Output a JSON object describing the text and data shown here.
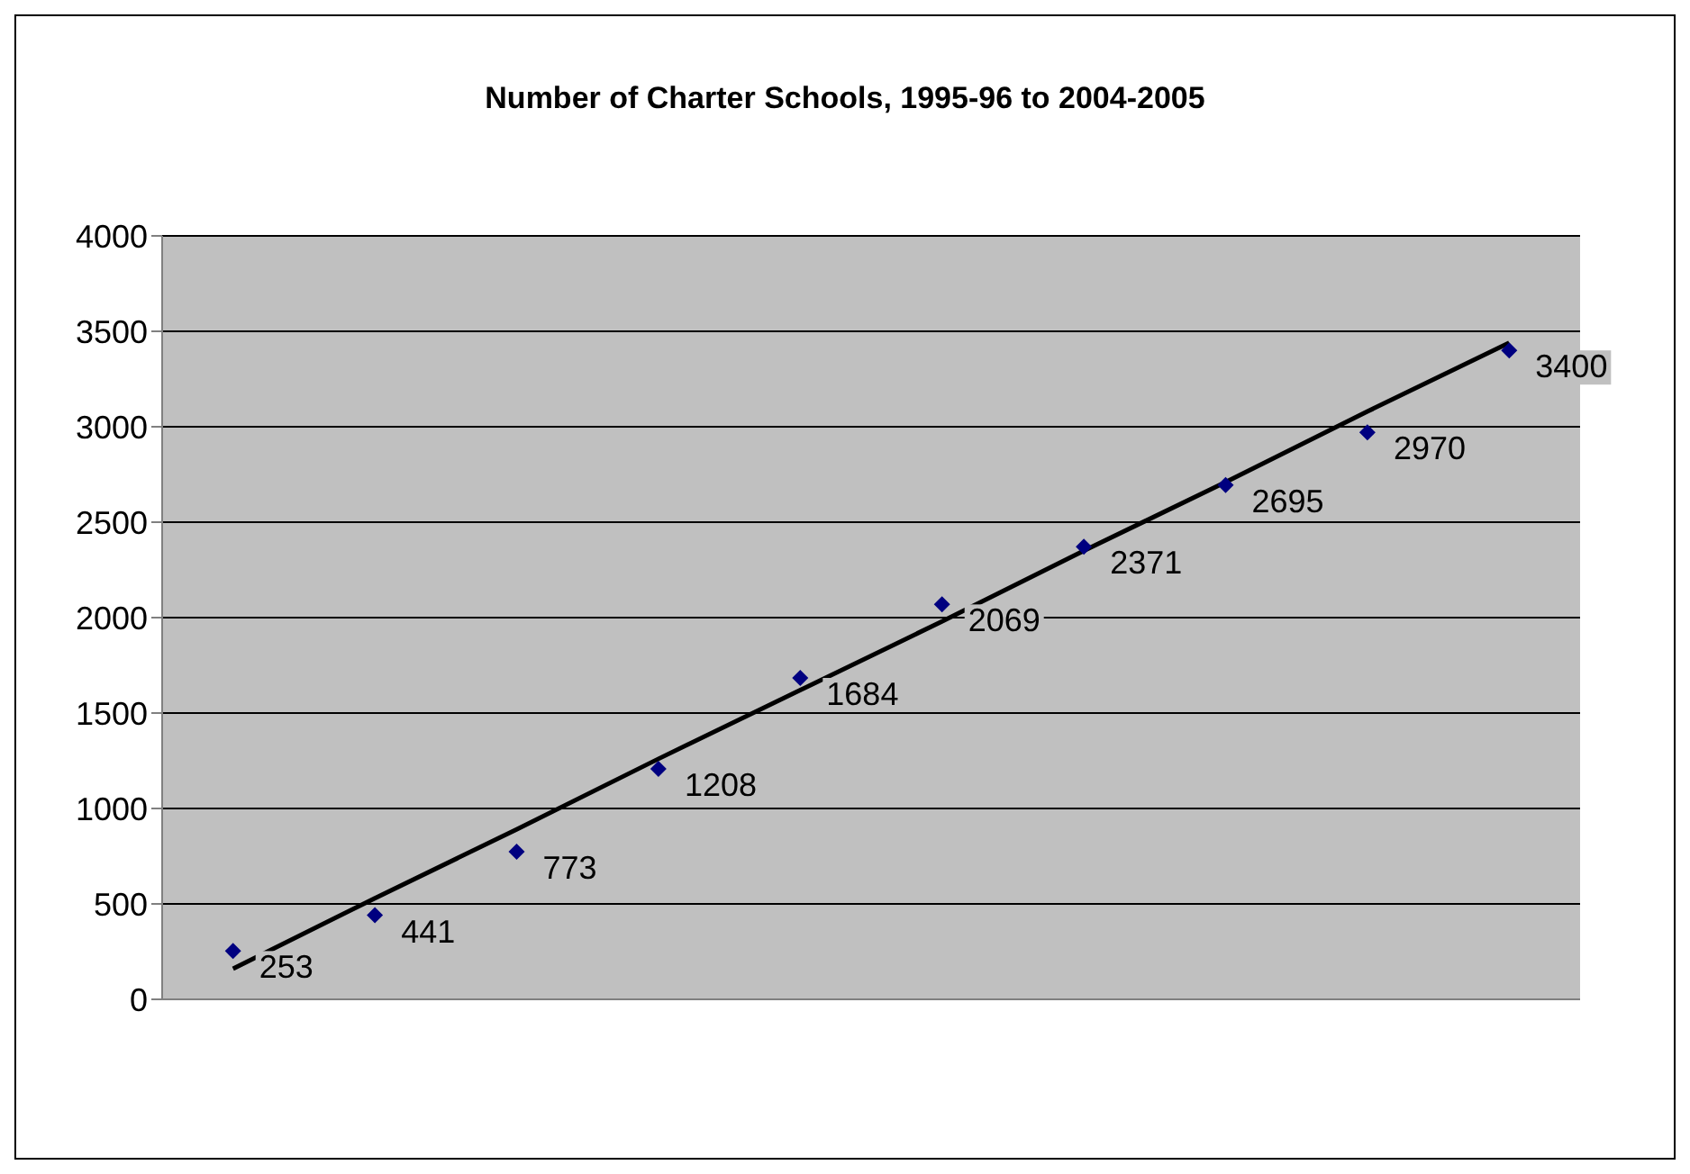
{
  "chart_data": {
    "type": "scatter",
    "title": "Number of Charter Schools, 1995-96 to 2004-2005",
    "categories": [
      null,
      null,
      null,
      null,
      null,
      null,
      null,
      null,
      null,
      null
    ],
    "ylim": [
      0,
      4000
    ],
    "yticks": [
      0,
      500,
      1000,
      1500,
      2000,
      2500,
      3000,
      3500,
      4000
    ],
    "series": [
      {
        "color": "#000080",
        "values": [
          253,
          441,
          773,
          1208,
          1684,
          2069,
          2371,
          2695,
          2970,
          3400
        ],
        "value_labels": [
          "253",
          "441",
          "773",
          "1208",
          "1684",
          "2069",
          "2371",
          "2695",
          "2970",
          "3400"
        ]
      },
      {
        "type": "line",
        "color": "#000000",
        "values": [
          160,
          530,
          890,
          1260,
          1620,
          1980,
          2350,
          2710,
          3080,
          3440
        ],
        "marker": "none"
      }
    ],
    "grid": "y",
    "legend": false,
    "tick_labels": "y",
    "marker": "diamond"
  }
}
